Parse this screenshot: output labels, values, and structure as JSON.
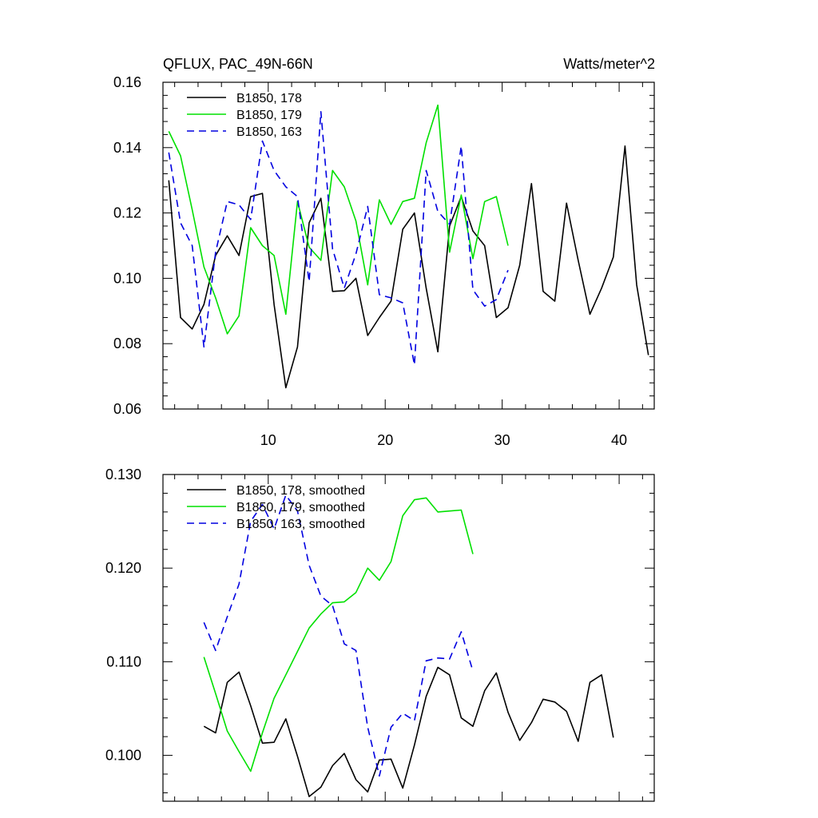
{
  "chart_data": [
    {
      "type": "line",
      "title": "QFLUX, PAC_49N-66N",
      "units": "Watts/meter^2",
      "xlim": [
        1,
        43
      ],
      "ylim": [
        0.06,
        0.16
      ],
      "yticks": [
        0.06,
        0.08,
        0.1,
        0.12,
        0.14,
        0.16
      ],
      "ytick_labels": [
        "0.06",
        "0.08",
        "0.10",
        "0.12",
        "0.14",
        "0.16"
      ],
      "xticks": [
        10,
        20,
        30,
        40
      ],
      "xtick_labels": [
        "10",
        "20",
        "30",
        "40"
      ],
      "grid": false,
      "legend_position": "top-left",
      "series": [
        {
          "name": "B1850, 178",
          "color": "#000000",
          "dash": "solid",
          "x": [
            1.5,
            2.5,
            3.5,
            4.5,
            5.5,
            6.5,
            7.5,
            8.5,
            9.5,
            10.5,
            11.5,
            12.5,
            13.5,
            14.5,
            15.5,
            16.5,
            17.5,
            18.5,
            19.5,
            20.5,
            21.5,
            22.5,
            23.5,
            24.5,
            25.5,
            26.5,
            27.5,
            28.5,
            29.5,
            30.5,
            31.5,
            32.5,
            33.5,
            34.5,
            35.5,
            36.5,
            37.5,
            38.5,
            39.5,
            40.5,
            41.5,
            42.5
          ],
          "y": [
            0.13,
            0.088,
            0.0845,
            0.092,
            0.107,
            0.113,
            0.107,
            0.125,
            0.126,
            0.092,
            0.0665,
            0.079,
            0.117,
            0.1245,
            0.096,
            0.0962,
            0.1,
            0.0825,
            0.088,
            0.093,
            0.115,
            0.12,
            0.097,
            0.0775,
            0.116,
            0.125,
            0.1145,
            0.11,
            0.088,
            0.091,
            0.104,
            0.129,
            0.096,
            0.093,
            0.123,
            0.1055,
            0.089,
            0.097,
            0.1065,
            0.1405,
            0.098,
            0.0765
          ]
        },
        {
          "name": "B1850, 179",
          "color": "#00e000",
          "dash": "solid",
          "x": [
            1.5,
            2.5,
            3.5,
            4.5,
            5.5,
            6.5,
            7.5,
            8.5,
            9.5,
            10.5,
            11.5,
            12.5,
            13.5,
            14.5,
            15.5,
            16.5,
            17.5,
            18.5,
            19.5,
            20.5,
            21.5,
            22.5,
            23.5,
            24.5,
            25.5,
            26.5,
            27.5,
            28.5,
            29.5,
            30.5
          ],
          "y": [
            0.145,
            0.1375,
            0.121,
            0.1035,
            0.094,
            0.083,
            0.0885,
            0.1155,
            0.11,
            0.107,
            0.089,
            0.1235,
            0.1095,
            0.1055,
            0.133,
            0.128,
            0.1175,
            0.098,
            0.124,
            0.1165,
            0.1235,
            0.1245,
            0.1415,
            0.153,
            0.108,
            0.1255,
            0.106,
            0.1235,
            0.125,
            0.11
          ]
        },
        {
          "name": "B1850, 163",
          "color": "#0000e0",
          "dash": "dashed",
          "x": [
            1.5,
            2.5,
            3.5,
            4.5,
            5.5,
            6.5,
            7.5,
            8.5,
            9.5,
            10.5,
            11.5,
            12.5,
            13.5,
            14.5,
            15.5,
            16.5,
            17.5,
            18.5,
            19.5,
            20.5,
            21.5,
            22.5,
            23.5,
            24.5,
            25.5,
            26.5,
            27.5,
            28.5,
            29.5,
            30.5
          ],
          "y": [
            0.1385,
            0.117,
            0.11,
            0.079,
            0.108,
            0.1235,
            0.1225,
            0.118,
            0.142,
            0.133,
            0.128,
            0.125,
            0.099,
            0.151,
            0.109,
            0.097,
            0.1075,
            0.122,
            0.095,
            0.094,
            0.0925,
            0.0735,
            0.133,
            0.1205,
            0.1165,
            0.1405,
            0.0965,
            0.0915,
            0.0935,
            0.1025
          ]
        }
      ]
    },
    {
      "type": "line",
      "xlim": [
        1,
        43
      ],
      "ylim": [
        0.0951,
        0.13
      ],
      "yticks": [
        0.1,
        0.11,
        0.12,
        0.13
      ],
      "ytick_labels": [
        "0.100",
        "0.110",
        "0.120",
        "0.130"
      ],
      "xticks": [
        10,
        20,
        30,
        40
      ],
      "grid": false,
      "legend_position": "top-left",
      "series": [
        {
          "name": "B1850, 178, smoothed",
          "color": "#000000",
          "dash": "solid",
          "x": [
            4.5,
            5.5,
            6.5,
            7.5,
            8.5,
            9.5,
            10.5,
            11.5,
            12.5,
            13.5,
            14.5,
            15.5,
            16.5,
            17.5,
            18.5,
            19.5,
            20.5,
            21.5,
            22.5,
            23.5,
            24.5,
            25.5,
            26.5,
            27.5,
            28.5,
            29.5,
            30.5,
            31.5,
            32.5,
            33.5,
            34.5,
            35.5,
            36.5,
            37.5,
            38.5,
            39.5
          ],
          "y": [
            0.1031,
            0.1024,
            0.1078,
            0.1089,
            0.1053,
            0.1013,
            0.1014,
            0.1039,
            0.0999,
            0.0956,
            0.0966,
            0.0989,
            0.1002,
            0.0974,
            0.0961,
            0.0995,
            0.0996,
            0.0965,
            0.1011,
            0.1063,
            0.1094,
            0.1086,
            0.104,
            0.1031,
            0.1069,
            0.1088,
            0.1046,
            0.1016,
            0.1035,
            0.106,
            0.1057,
            0.1047,
            0.1015,
            0.1078,
            0.1086,
            0.1019
          ]
        },
        {
          "name": "B1850, 179, smoothed",
          "color": "#00e000",
          "dash": "solid",
          "x": [
            4.5,
            5.5,
            6.5,
            7.5,
            8.5,
            9.5,
            10.5,
            11.5,
            12.5,
            13.5,
            14.5,
            15.5,
            16.5,
            17.5,
            18.5,
            19.5,
            20.5,
            21.5,
            22.5,
            23.5,
            24.5,
            25.5,
            26.5,
            27.5
          ],
          "y": [
            0.1105,
            0.1066,
            0.1026,
            0.1004,
            0.0983,
            0.1024,
            0.1061,
            0.1086,
            0.1111,
            0.1136,
            0.1151,
            0.1163,
            0.1164,
            0.1174,
            0.12,
            0.1187,
            0.1207,
            0.1256,
            0.1273,
            0.1275,
            0.126,
            0.1261,
            0.1262,
            0.1215
          ]
        },
        {
          "name": "B1850, 163, smoothed",
          "color": "#0000e0",
          "dash": "dashed",
          "x": [
            4.5,
            5.5,
            6.5,
            7.5,
            8.5,
            9.5,
            10.5,
            11.5,
            12.5,
            13.5,
            14.5,
            15.5,
            16.5,
            17.5,
            18.5,
            19.5,
            20.5,
            21.5,
            22.5,
            23.5,
            24.5,
            25.5,
            26.5,
            27.5
          ],
          "y": [
            0.1142,
            0.1112,
            0.1148,
            0.1183,
            0.125,
            0.1268,
            0.1242,
            0.1278,
            0.1261,
            0.1203,
            0.117,
            0.116,
            0.1119,
            0.1112,
            0.103,
            0.0978,
            0.103,
            0.1045,
            0.1037,
            0.1101,
            0.1104,
            0.1103,
            0.1132,
            0.109
          ]
        }
      ]
    }
  ]
}
